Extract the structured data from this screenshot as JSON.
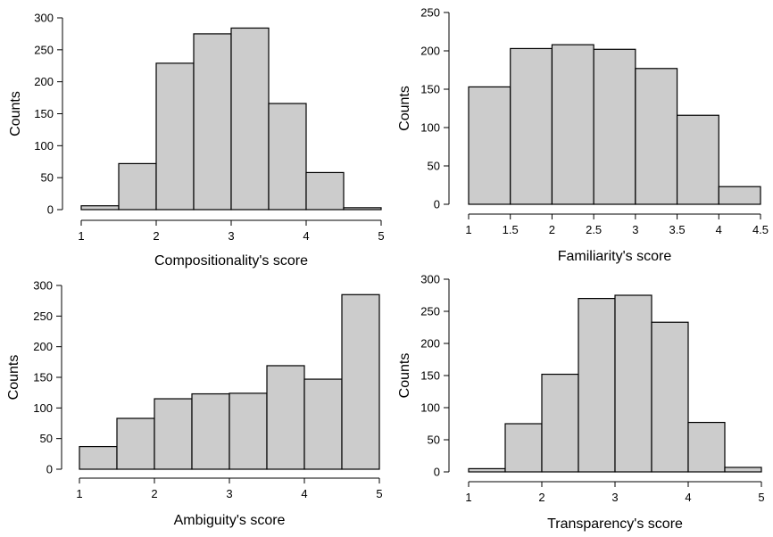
{
  "chart_data": [
    {
      "type": "bar",
      "xlabel": "Compositionality's score",
      "ylabel": "Counts",
      "bins": [
        [
          1,
          1.5
        ],
        [
          1.5,
          2
        ],
        [
          2,
          2.5
        ],
        [
          2.5,
          3
        ],
        [
          3,
          3.5
        ],
        [
          3.5,
          4
        ],
        [
          4,
          4.5
        ],
        [
          4.5,
          5
        ]
      ],
      "values": [
        6,
        72,
        229,
        275,
        284,
        166,
        58,
        3
      ],
      "xlim": [
        1,
        5
      ],
      "ylim": [
        0,
        300
      ],
      "xticks": [
        "1",
        "2",
        "3",
        "4",
        "5"
      ],
      "yticks": [
        "0",
        "50",
        "100",
        "150",
        "200",
        "250",
        "300"
      ],
      "bar_color": "#cccccc"
    },
    {
      "type": "bar",
      "xlabel": "Familiarity's score",
      "ylabel": "Counts",
      "bins": [
        [
          1,
          1.5
        ],
        [
          1.5,
          2
        ],
        [
          2,
          2.5
        ],
        [
          2.5,
          3
        ],
        [
          3,
          3.5
        ],
        [
          3.5,
          4
        ],
        [
          4,
          4.5
        ]
      ],
      "values": [
        153,
        203,
        208,
        202,
        177,
        116,
        23
      ],
      "xlim": [
        1,
        4.5
      ],
      "ylim": [
        0,
        250
      ],
      "xticks": [
        "1",
        "1.5",
        "2",
        "2.5",
        "3",
        "3.5",
        "4",
        "4.5"
      ],
      "yticks": [
        "0",
        "50",
        "100",
        "150",
        "200",
        "250"
      ],
      "bar_color": "#cccccc"
    },
    {
      "type": "bar",
      "xlabel": "Ambiguity's score",
      "ylabel": "Counts",
      "bins": [
        [
          1,
          1.5
        ],
        [
          1.5,
          2
        ],
        [
          2,
          2.5
        ],
        [
          2.5,
          3
        ],
        [
          3,
          3.5
        ],
        [
          3.5,
          4
        ],
        [
          4,
          4.5
        ],
        [
          4.5,
          5
        ]
      ],
      "values": [
        37,
        83,
        115,
        123,
        124,
        169,
        147,
        285
      ],
      "xlim": [
        1,
        5
      ],
      "ylim": [
        0,
        300
      ],
      "xticks": [
        "1",
        "2",
        "3",
        "4",
        "5"
      ],
      "yticks": [
        "0",
        "50",
        "100",
        "150",
        "200",
        "250",
        "300"
      ],
      "bar_color": "#cccccc"
    },
    {
      "type": "bar",
      "xlabel": "Transparency's score",
      "ylabel": "Counts",
      "bins": [
        [
          1,
          1.5
        ],
        [
          1.5,
          2
        ],
        [
          2,
          2.5
        ],
        [
          2.5,
          3
        ],
        [
          3,
          3.5
        ],
        [
          3.5,
          4
        ],
        [
          4,
          4.5
        ],
        [
          4.5,
          5
        ]
      ],
      "values": [
        5,
        75,
        152,
        270,
        275,
        233,
        77,
        7
      ],
      "xlim": [
        1,
        5
      ],
      "ylim": [
        0,
        300
      ],
      "xticks": [
        "1",
        "2",
        "3",
        "4",
        "5"
      ],
      "yticks": [
        "0",
        "50",
        "100",
        "150",
        "200",
        "250",
        "300"
      ],
      "bar_color": "#cccccc"
    }
  ]
}
